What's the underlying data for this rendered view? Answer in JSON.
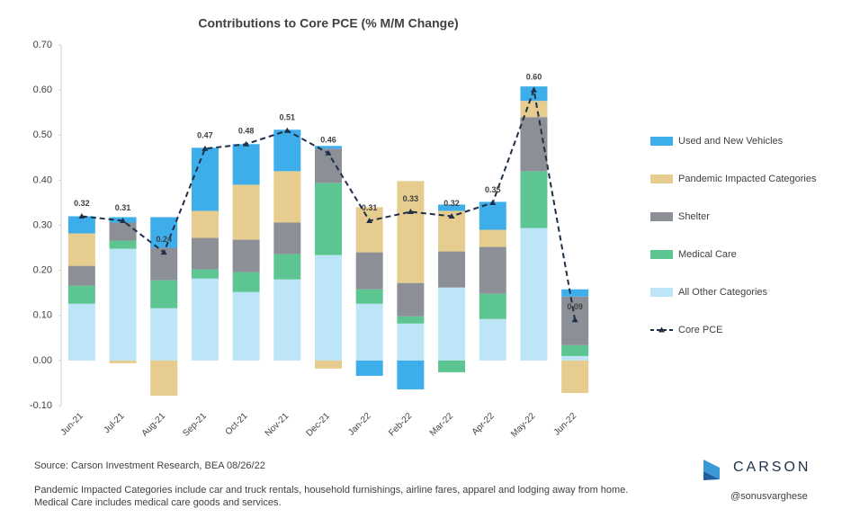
{
  "chart_data": {
    "type": "stacked-bar-line",
    "title": "Contributions to Core PCE (% M/M Change)",
    "categories": [
      "Jun-21",
      "Jul-21",
      "Aug-21",
      "Sep-21",
      "Oct-21",
      "Nov-21",
      "Dec-21",
      "Jan-22",
      "Feb-22",
      "Mar-22",
      "Apr-22",
      "May-22",
      "Jun-22"
    ],
    "series": [
      {
        "name": "All Other Categories",
        "color": "#bde5f8",
        "values": [
          0.126,
          0.248,
          0.116,
          0.182,
          0.152,
          0.18,
          0.234,
          0.126,
          0.082,
          0.162,
          0.092,
          0.294,
          0.01
        ]
      },
      {
        "name": "Medical Care",
        "color": "#5cc591",
        "values": [
          0.04,
          0.018,
          0.062,
          0.02,
          0.044,
          0.056,
          0.16,
          0.032,
          0.016,
          -0.026,
          0.056,
          0.126,
          0.024
        ]
      },
      {
        "name": "Shelter",
        "color": "#8c9096",
        "values": [
          0.044,
          0.04,
          0.072,
          0.07,
          0.072,
          0.07,
          0.076,
          0.082,
          0.074,
          0.08,
          0.104,
          0.12,
          0.108
        ]
      },
      {
        "name": "Pandemic Impacted Categories",
        "color": "#e6cc8f",
        "values": [
          0.072,
          -0.006,
          -0.078,
          0.06,
          0.122,
          0.114,
          -0.018,
          0.1,
          0.226,
          0.09,
          0.038,
          0.036,
          -0.072
        ]
      },
      {
        "name": "Used and New Vehicles",
        "color": "#3daee9",
        "values": [
          0.038,
          0.012,
          0.068,
          0.14,
          0.09,
          0.092,
          0.006,
          -0.034,
          -0.064,
          0.014,
          0.062,
          0.032,
          0.016
        ]
      }
    ],
    "line": {
      "name": "Core PCE",
      "color": "#1f3048",
      "values": [
        0.32,
        0.31,
        0.24,
        0.47,
        0.48,
        0.51,
        0.46,
        0.31,
        0.33,
        0.32,
        0.35,
        0.6,
        0.09
      ],
      "value_labels": [
        "0.32",
        "0.31",
        "0.24",
        "0.47",
        "0.48",
        "0.51",
        "0.46",
        "0.31",
        "0.33",
        "0.32",
        "0.35",
        "0.60",
        "0.09"
      ]
    },
    "ylim": [
      -0.1,
      0.7
    ],
    "yticks": [
      {
        "value": -0.1,
        "label": "-0.10"
      },
      {
        "value": 0,
        "label": "0.00"
      },
      {
        "value": 0.1,
        "label": "0.10"
      },
      {
        "value": 0.2,
        "label": "0.20"
      },
      {
        "value": 0.3,
        "label": "0.30"
      },
      {
        "value": 0.4,
        "label": "0.40"
      },
      {
        "value": 0.5,
        "label": "0.50"
      },
      {
        "value": 0.6,
        "label": "0.60"
      },
      {
        "value": 0.7,
        "label": "0.70"
      }
    ],
    "grid": false,
    "legend": "right",
    "source": "Source: Carson Investment Research, BEA   08/26/22",
    "notes": [
      "Pandemic Impacted Categories include car and truck rentals, household furnishings, airline fares, apparel and lodging away from home.",
      "Medical Care includes medical care goods and services."
    ],
    "brand": "CARSON",
    "handle": "@sonusvarghese"
  }
}
